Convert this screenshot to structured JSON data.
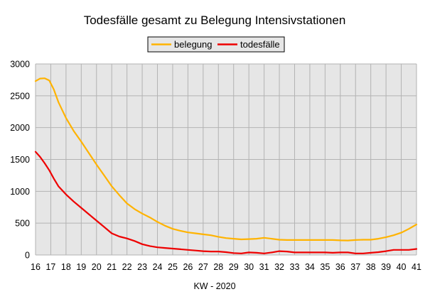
{
  "chart_data": {
    "type": "line",
    "title": "Todesfälle gesamt zu Belegung Intensivstationen",
    "xlabel": "KW - 2020",
    "ylabel": "",
    "xlim": [
      16,
      41
    ],
    "ylim": [
      0,
      3000
    ],
    "x_ticks": [
      "16",
      "17",
      "18",
      "19",
      "20",
      "21",
      "22",
      "23",
      "24",
      "25",
      "26",
      "27",
      "28",
      "29",
      "30",
      "31",
      "32",
      "33",
      "34",
      "35",
      "36",
      "37",
      "38",
      "39",
      "40",
      "41"
    ],
    "y_ticks": [
      "0",
      "500",
      "1000",
      "1500",
      "2000",
      "2500",
      "3000"
    ],
    "grid": true,
    "legend_position": "top",
    "background": "#e6e6e6",
    "series": [
      {
        "name": "belegung",
        "color": "#ffb300",
        "x": [
          16,
          16.3,
          16.6,
          16.9,
          17.2,
          17.5,
          18,
          18.5,
          19,
          19.5,
          20,
          20.5,
          21,
          21.5,
          22,
          22.5,
          23,
          23.5,
          24,
          24.5,
          25,
          25.5,
          26,
          26.5,
          27,
          27.5,
          28,
          28.5,
          29,
          29.5,
          30,
          30.5,
          31,
          31.5,
          32,
          32.5,
          33,
          34,
          35,
          35.5,
          36,
          36.5,
          37,
          37.5,
          38,
          38.5,
          39,
          39.5,
          40,
          40.5,
          41
        ],
        "y": [
          2730,
          2770,
          2775,
          2740,
          2600,
          2400,
          2150,
          1950,
          1780,
          1600,
          1420,
          1250,
          1080,
          940,
          810,
          720,
          650,
          590,
          520,
          460,
          410,
          380,
          355,
          340,
          325,
          310,
          285,
          265,
          255,
          245,
          250,
          255,
          270,
          255,
          240,
          235,
          235,
          235,
          235,
          235,
          230,
          228,
          235,
          240,
          240,
          255,
          280,
          310,
          350,
          410,
          480
        ]
      },
      {
        "name": "todesfälle",
        "color": "#ee0000",
        "x": [
          16,
          16.3,
          16.6,
          16.9,
          17.2,
          17.5,
          18,
          18.5,
          19,
          19.5,
          20,
          20.5,
          21,
          21.5,
          22,
          22.5,
          23,
          23.5,
          24,
          24.5,
          25,
          25.5,
          26,
          26.5,
          27,
          27.5,
          28,
          28.5,
          29,
          29.5,
          30,
          30.5,
          31,
          31.5,
          32,
          32.5,
          33,
          33.5,
          34,
          34.5,
          35,
          35.5,
          36,
          36.5,
          37,
          37.5,
          38,
          38.5,
          39,
          39.5,
          40,
          40.5,
          41
        ],
        "y": [
          1620,
          1540,
          1440,
          1330,
          1200,
          1080,
          950,
          840,
          740,
          640,
          540,
          440,
          340,
          290,
          260,
          220,
          170,
          140,
          120,
          110,
          100,
          90,
          80,
          70,
          60,
          55,
          55,
          45,
          30,
          25,
          40,
          35,
          25,
          40,
          60,
          55,
          40,
          40,
          40,
          40,
          40,
          35,
          40,
          40,
          25,
          25,
          35,
          45,
          60,
          80,
          80,
          80,
          95
        ]
      }
    ]
  }
}
